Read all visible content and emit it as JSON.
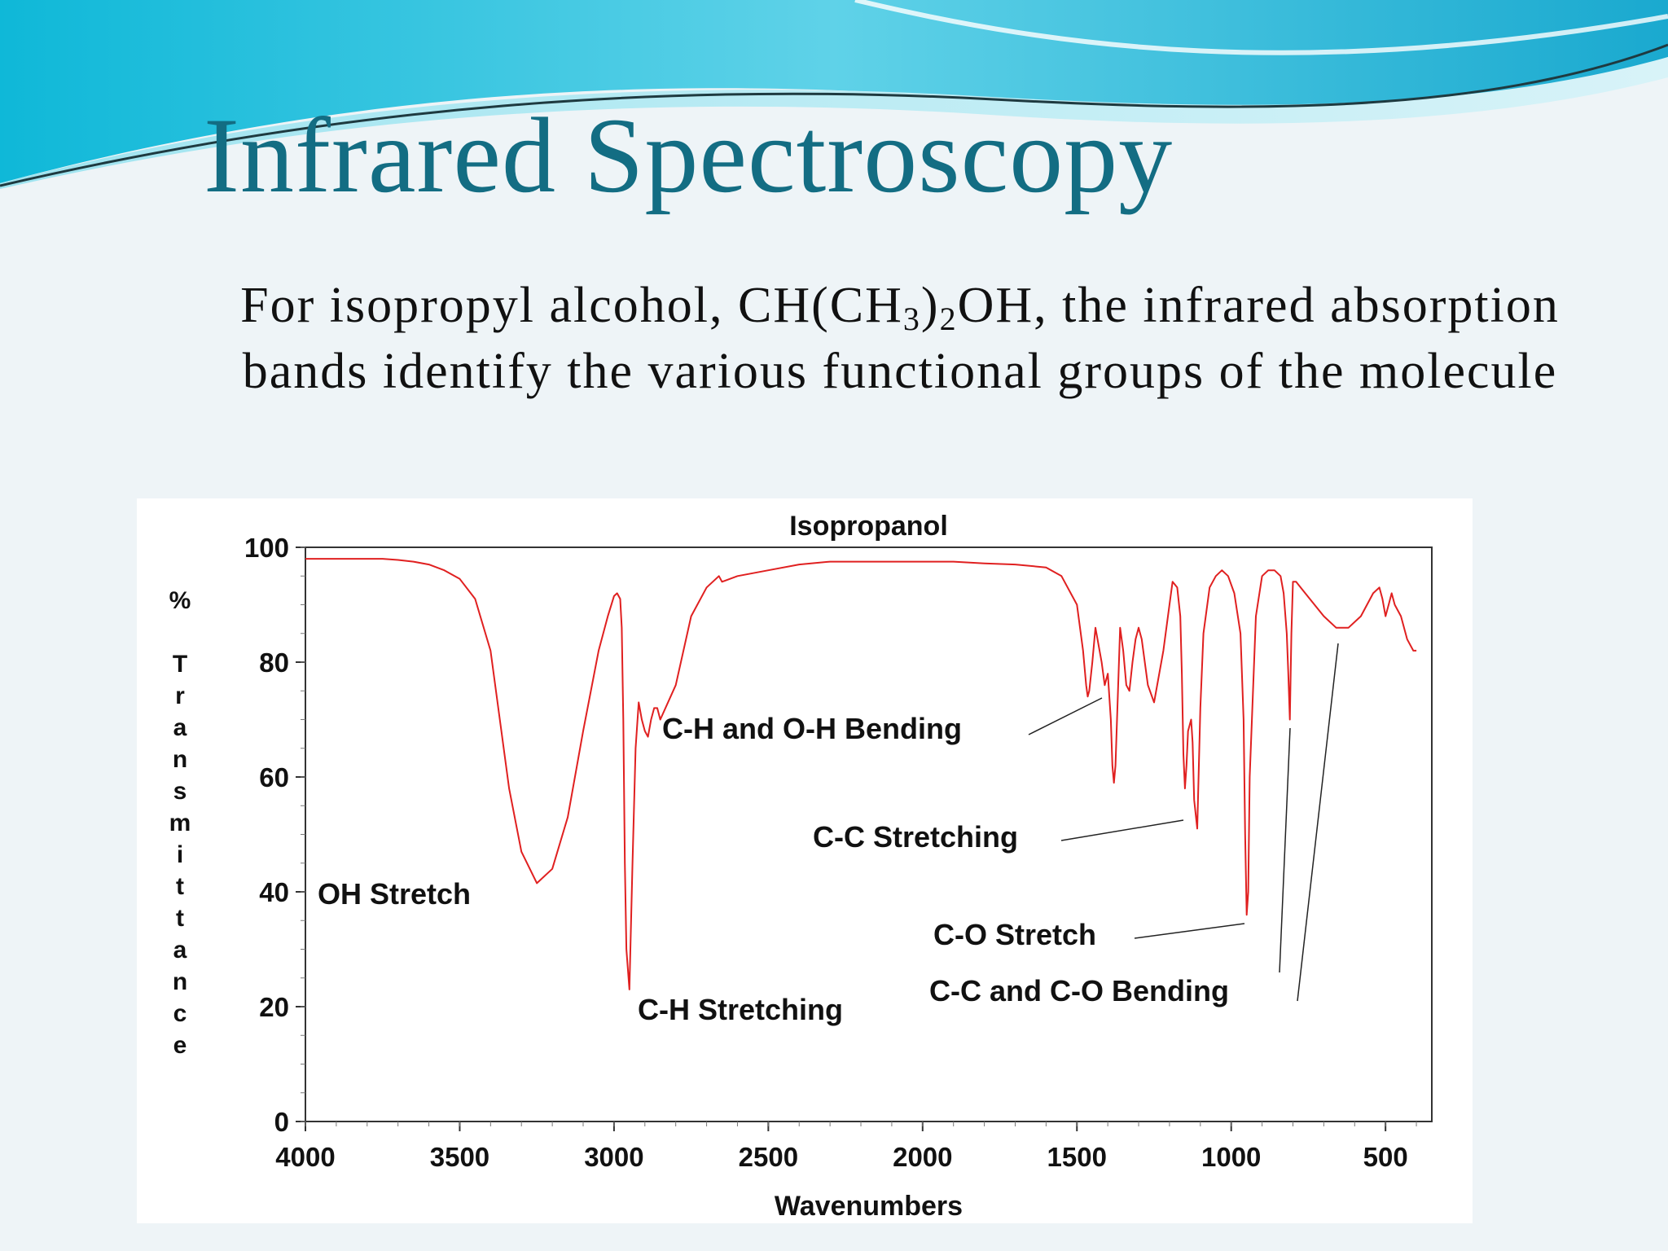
{
  "slide": {
    "title": "Infrared Spectroscopy",
    "subtitle": {
      "part1": "For isopropyl alcohol, CH(CH",
      "sub1": "3",
      "part2": ")",
      "sub2": "2",
      "part3": "OH, the infrared absorption bands identify the various functional groups of the molecule"
    }
  },
  "chart_data": {
    "type": "line",
    "title": "Isopropanol",
    "xlabel": "Wavenumbers",
    "ylabel": "% Transmittance",
    "xlim": [
      4000,
      350
    ],
    "ylim": [
      0,
      100
    ],
    "x_reversed": true,
    "xticks": [
      4000,
      3500,
      3000,
      2500,
      2000,
      1500,
      1000,
      500
    ],
    "yticks": [
      0,
      20,
      40,
      60,
      80,
      100
    ],
    "grid": false,
    "line_color": "#e02020",
    "series": [
      {
        "x": [
          4000,
          3750,
          3700,
          3650,
          3600,
          3550,
          3500,
          3450,
          3400,
          3370,
          3340,
          3300,
          3250,
          3200,
          3150,
          3100,
          3050,
          3020,
          3000,
          2990,
          2980,
          2975,
          2970,
          2965,
          2960,
          2950,
          2940,
          2930,
          2920,
          2910,
          2900,
          2890,
          2880,
          2870,
          2860,
          2850,
          2800,
          2750,
          2700,
          2660,
          2650,
          2600,
          2500,
          2400,
          2300,
          2200,
          2100,
          2000,
          1900,
          1800,
          1700,
          1600,
          1550,
          1500,
          1480,
          1470,
          1465,
          1460,
          1450,
          1440,
          1420,
          1410,
          1400,
          1390,
          1385,
          1380,
          1375,
          1370,
          1365,
          1360,
          1350,
          1340,
          1330,
          1320,
          1310,
          1300,
          1290,
          1270,
          1250,
          1220,
          1200,
          1190,
          1175,
          1165,
          1160,
          1155,
          1150,
          1145,
          1140,
          1130,
          1125,
          1120,
          1110,
          1100,
          1090,
          1070,
          1050,
          1030,
          1010,
          990,
          970,
          960,
          955,
          950,
          945,
          940,
          920,
          900,
          880,
          860,
          840,
          830,
          820,
          815,
          810,
          805,
          800,
          790,
          760,
          700,
          660,
          620,
          580,
          540,
          520,
          510,
          500,
          495,
          490,
          480,
          470,
          450,
          430,
          410,
          400
        ],
        "y": [
          98,
          98,
          97.8,
          97.5,
          97,
          96,
          94.5,
          91,
          82,
          70,
          58,
          47,
          41.5,
          44,
          53,
          68,
          82,
          88,
          91.5,
          92,
          91,
          86,
          70,
          45,
          30,
          23,
          45,
          65,
          73,
          70,
          68,
          67,
          70,
          72,
          72,
          70,
          76,
          88,
          93,
          95,
          94,
          95,
          96,
          97,
          97.5,
          97.5,
          97.5,
          97.5,
          97.5,
          97.2,
          97,
          96.5,
          95,
          90,
          82,
          76,
          74,
          75,
          80,
          86,
          80,
          76,
          78,
          70,
          62,
          59,
          62,
          70,
          78,
          86,
          82,
          76,
          75,
          80,
          84,
          86,
          84,
          76,
          73,
          82,
          90,
          94,
          93,
          88,
          78,
          64,
          58,
          62,
          68,
          70,
          66,
          56,
          51,
          72,
          85,
          93,
          95,
          96,
          95,
          92,
          85,
          70,
          50,
          36,
          40,
          60,
          88,
          95,
          96,
          96,
          95,
          92,
          85,
          78,
          70,
          85,
          94,
          94,
          92,
          88,
          86,
          86,
          88,
          92,
          93,
          91,
          88,
          89,
          90,
          92,
          90,
          88,
          84,
          82,
          82
        ]
      }
    ],
    "annotations": [
      {
        "text": "OH Stretch"
      },
      {
        "text": "C-H Stretching"
      },
      {
        "text": "C-H and O-H Bending"
      },
      {
        "text": "C-C Stretching"
      },
      {
        "text": "C-O Stretch"
      },
      {
        "text": "C-C and C-O Bending"
      }
    ]
  }
}
